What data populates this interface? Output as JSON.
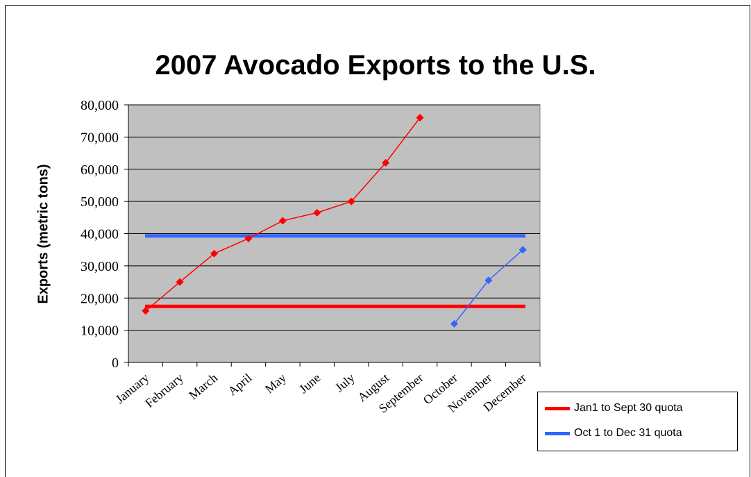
{
  "chart_data": {
    "type": "line",
    "title": "2007 Avocado Exports to the U.S.",
    "xlabel": "",
    "ylabel": "Exports (metric tons)",
    "ylim": [
      0,
      80000
    ],
    "yticks": [
      "0",
      "10,000",
      "20,000",
      "30,000",
      "40,000",
      "50,000",
      "60,000",
      "70,000",
      "80,000"
    ],
    "yticks_values": [
      0,
      10000,
      20000,
      30000,
      40000,
      50000,
      60000,
      70000,
      80000
    ],
    "categories": [
      "January",
      "February",
      "March",
      "April",
      "May",
      "June",
      "July",
      "August",
      "September",
      "October",
      "November",
      "December"
    ],
    "grid": true,
    "plot_background": "#c0c0c0",
    "legend_position": "bottom-right",
    "series": [
      {
        "name": "",
        "color": "#ff0000",
        "marker": "diamond",
        "values": [
          16000,
          25000,
          33800,
          38500,
          44000,
          46500,
          50000,
          62000,
          76000,
          null,
          null,
          null
        ]
      },
      {
        "name": "",
        "color": "#3366ff",
        "marker": "diamond",
        "values": [
          null,
          null,
          null,
          null,
          null,
          null,
          null,
          null,
          null,
          12000,
          25500,
          35000
        ]
      },
      {
        "name": "Jan1 to Sept 30 quota",
        "color": "#ff0000",
        "type": "hline",
        "value": 17400
      },
      {
        "name": "Oct 1 to Dec 31 quota",
        "color": "#3366ff",
        "type": "hline",
        "value": 39300
      }
    ]
  }
}
